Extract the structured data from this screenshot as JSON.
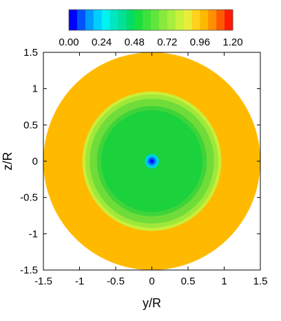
{
  "chart_data": {
    "type": "heatmap",
    "title": "",
    "xlabel": "y/R",
    "ylabel": "z/R",
    "xlim": [
      -1.5,
      1.5
    ],
    "ylim": [
      -1.5,
      1.5
    ],
    "xticks": [
      "-1.5",
      "-1",
      "-0.5",
      "0",
      "0.5",
      "1",
      "1.5"
    ],
    "yticks": [
      "-1.5",
      "-1",
      "-0.5",
      "0",
      "0.5",
      "1",
      "1.5"
    ],
    "grid": false,
    "colorbar": {
      "range": [
        0.0,
        1.2
      ],
      "levels": [
        0.0,
        0.06,
        0.12,
        0.18,
        0.24,
        0.3,
        0.36,
        0.42,
        0.48,
        0.54,
        0.6,
        0.66,
        0.72,
        0.78,
        0.84,
        0.9,
        0.96,
        1.02,
        1.08,
        1.14
      ],
      "colors": [
        "#0000ff",
        "#0052ff",
        "#009aff",
        "#00ceff",
        "#00f2f2",
        "#00e6c0",
        "#00e09a",
        "#00dc6a",
        "#1ade3c",
        "#3ee23c",
        "#62e63c",
        "#86ea3c",
        "#a8ee3c",
        "#c8f23c",
        "#e8ee38",
        "#ffd21e",
        "#ffb800",
        "#ff9000",
        "#ff5a00",
        "#ff1a00"
      ],
      "tick_labels": [
        "0.00",
        "0.24",
        "0.48",
        "0.72",
        "0.96",
        "1.20"
      ]
    },
    "field": {
      "description_values": "contour of a disk of radius 1.5; outer ring uniform, wake region lower",
      "outer_value": 0.98,
      "outer_color": "#ffba00",
      "zones": [
        {
          "radius": 0.96,
          "value": 0.8,
          "color": "#c9ef3b"
        },
        {
          "radius": 0.92,
          "value": 0.72,
          "color": "#9fe83a"
        },
        {
          "radius": 0.86,
          "value": 0.66,
          "color": "#6fdc3a"
        },
        {
          "radius": 0.76,
          "value": 0.6,
          "color": "#3ed43a"
        },
        {
          "radius": 0.1,
          "value": 0.3,
          "color": "#00d2d8"
        },
        {
          "radius": 0.06,
          "value": 0.12,
          "color": "#0078ff"
        },
        {
          "radius": 0.03,
          "value": 0.0,
          "color": "#0010ff"
        }
      ],
      "inner_value": 0.56,
      "inner_color": "#1bd13c",
      "disk_radius": 1.5
    }
  }
}
